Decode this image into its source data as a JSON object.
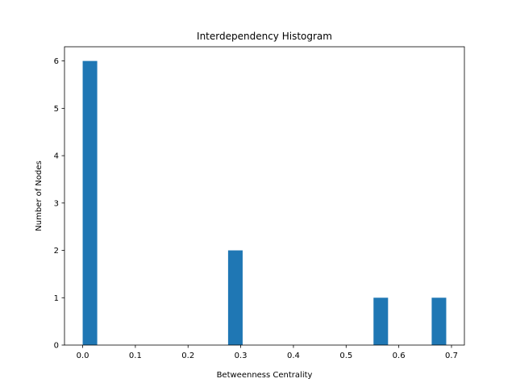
{
  "chart_data": {
    "type": "bar",
    "title": "Interdependency Histogram",
    "xlabel": "Betweenness Centrality",
    "ylabel": "Number of Nodes",
    "xlim": [
      -0.0345,
      0.7245
    ],
    "ylim": [
      0,
      6.3
    ],
    "x_ticks": [
      0.0,
      0.1,
      0.2,
      0.3,
      0.4,
      0.5,
      0.6,
      0.7
    ],
    "x_tick_labels": [
      "0.0",
      "0.1",
      "0.2",
      "0.3",
      "0.4",
      "0.5",
      "0.6",
      "0.7"
    ],
    "y_ticks": [
      0,
      1,
      2,
      3,
      4,
      5,
      6
    ],
    "y_tick_labels": [
      "0",
      "1",
      "2",
      "3",
      "4",
      "5",
      "6"
    ],
    "bar_color": "#1f77b4",
    "grid": false,
    "legend": "none",
    "bins": [
      {
        "start": 0.0,
        "end": 0.0276,
        "count": 6
      },
      {
        "start": 0.276,
        "end": 0.3036,
        "count": 2
      },
      {
        "start": 0.552,
        "end": 0.5796,
        "count": 1
      },
      {
        "start": 0.6624,
        "end": 0.69,
        "count": 1
      }
    ]
  }
}
